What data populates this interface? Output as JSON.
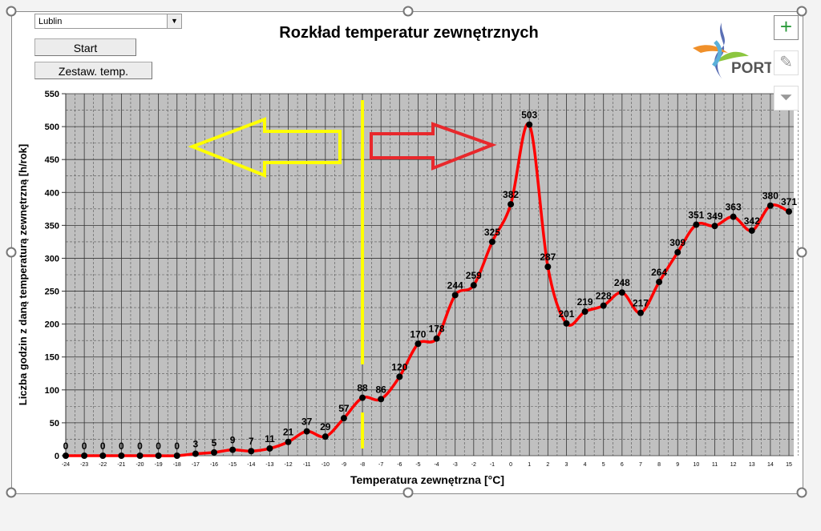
{
  "controls": {
    "city": "Lublin",
    "start": "Start",
    "zestaw": "Zestaw. temp."
  },
  "logo_text": "PORT",
  "colors": {
    "line": "#ff0000",
    "plot_bg": "#c0c0c0",
    "yellow": "#ffff00",
    "red": "#e8282c"
  },
  "chart_data": {
    "type": "line",
    "title": "Rozkład temperatur zewnętrznych",
    "xlabel": "Temperatura zewnętrzna [°C]",
    "ylabel": "Liczba godzin z daną temperaturą zewnętrzną [h/rok]",
    "x": [
      -24,
      -23,
      -22,
      -21,
      -20,
      -19,
      -18,
      -17,
      -16,
      -15,
      -14,
      -13,
      -12,
      -11,
      -10,
      -9,
      -8,
      -7,
      -6,
      -5,
      -4,
      -3,
      -2,
      -1,
      0,
      1,
      2,
      3,
      4,
      5,
      6,
      7,
      8,
      9,
      10,
      11,
      12,
      13,
      14,
      15
    ],
    "values": [
      0,
      0,
      0,
      0,
      0,
      0,
      0,
      3,
      5,
      9,
      7,
      11,
      21,
      37,
      29,
      57,
      88,
      86,
      120,
      170,
      178,
      244,
      259,
      325,
      382,
      503,
      287,
      201,
      219,
      228,
      248,
      217,
      264,
      309,
      351,
      349,
      363,
      342,
      380,
      371
    ],
    "ylim": [
      0,
      550
    ],
    "yticks": [
      0,
      50,
      100,
      150,
      200,
      250,
      300,
      350,
      400,
      450,
      500,
      550
    ],
    "grid": true,
    "marker_x": -8
  }
}
